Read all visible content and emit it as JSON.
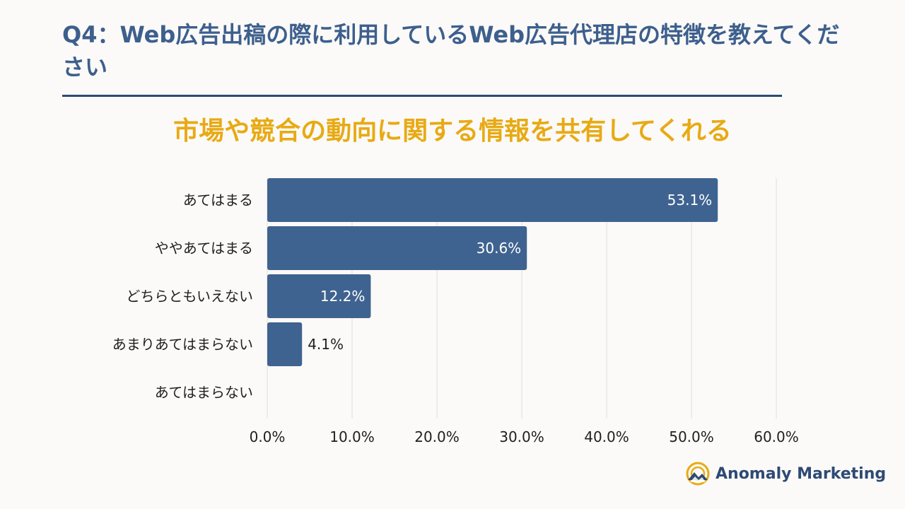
{
  "header": {
    "question": "Q4：Web広告出稿の際に利用しているWeb広告代理店の特徴を教えてください"
  },
  "brand": {
    "name": "Anomaly Marketing",
    "icon": "mountain-sun-logo-icon"
  },
  "colors": {
    "title": "#3d5f8d",
    "subtitle": "#e8aa14",
    "bar": "#3f6390",
    "rule": "#2e4a74",
    "grid": "#dddddd"
  },
  "chart_data": {
    "type": "bar",
    "orientation": "horizontal",
    "title": "市場や競合の動向に関する情報を共有してくれる",
    "categories": [
      "あてはまる",
      "ややあてはまる",
      "どちらともいえない",
      "あまりあてはまらない",
      "あてはまらない"
    ],
    "values": [
      53.1,
      30.6,
      12.2,
      4.1,
      null
    ],
    "value_labels": [
      "53.1%",
      "30.6%",
      "12.2%",
      "4.1%",
      ""
    ],
    "xlim": [
      0,
      60
    ],
    "x_ticks": [
      "0.0%",
      "10.0%",
      "20.0%",
      "30.0%",
      "40.0%",
      "50.0%",
      "60.0%"
    ],
    "grid": true,
    "xlabel": "",
    "ylabel": ""
  }
}
